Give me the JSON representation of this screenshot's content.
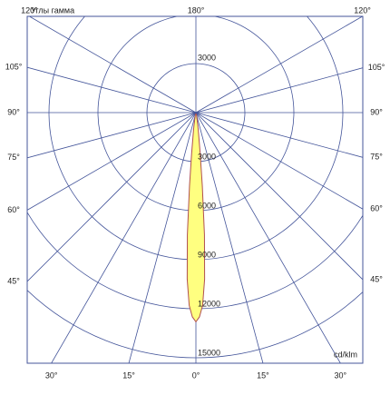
{
  "chart_data": {
    "type": "polar",
    "title": "Углы гамма",
    "unit_label": "cd/klm",
    "x": [
      -15,
      -10,
      -8,
      -6,
      -5,
      -4,
      -3,
      -2,
      -1,
      0,
      1,
      2,
      3,
      4,
      5,
      6,
      8,
      10,
      15
    ],
    "values": [
      100,
      400,
      1000,
      2500,
      4500,
      7500,
      10200,
      11800,
      12500,
      12800,
      12500,
      11800,
      10200,
      7500,
      4500,
      2500,
      1000,
      400,
      100
    ],
    "color": "#b05050",
    "fill": "#ffff80",
    "rlim": [
      0,
      15000
    ],
    "rticks": [
      3000,
      6000,
      9000,
      12000,
      15000
    ],
    "angle_ticks": [
      {
        "value": 0,
        "label": "0°"
      },
      {
        "value": 15,
        "label": "15°"
      },
      {
        "value": 30,
        "label": "30°"
      },
      {
        "value": 45,
        "label": "45°"
      },
      {
        "value": 60,
        "label": "60°"
      },
      {
        "value": 75,
        "label": "75°"
      },
      {
        "value": 90,
        "label": "90°"
      },
      {
        "value": 105,
        "label": "105°"
      },
      {
        "value": 120,
        "label": "120°"
      },
      {
        "value": 180,
        "label": "180°"
      }
    ],
    "grid_color": "#44559a"
  }
}
